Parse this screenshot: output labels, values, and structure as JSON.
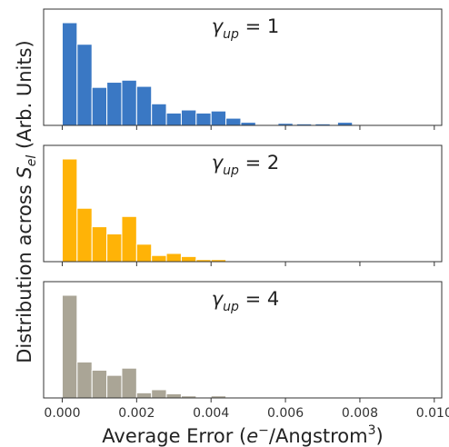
{
  "chart_data": {
    "type": "bar",
    "title": "",
    "xlabel": {
      "prefix": "Average Error (",
      "base": "e",
      "sup1": "−",
      "mid": "/Angstrom",
      "sup2": "3",
      "suffix": ")"
    },
    "ylabel": {
      "prefix": "Distribution across ",
      "symbol": "S",
      "sub": "el",
      "suffix": " (Arb. Units)"
    },
    "xlim": [
      -0.0005,
      0.0102
    ],
    "bin_width": 0.0004,
    "bin_start": 0.0,
    "x_ticks": [
      "0.000",
      "0.002",
      "0.004",
      "0.006",
      "0.008",
      "0.010"
    ],
    "x_tick_values": [
      0.0,
      0.002,
      0.004,
      0.006,
      0.008,
      0.01
    ],
    "grid": false,
    "panels": [
      {
        "label": {
          "gamma": "γ",
          "sub": "up",
          "rest": " = 1"
        },
        "color": "#3a78c4",
        "values": [
          1.0,
          0.79,
          0.37,
          0.42,
          0.44,
          0.38,
          0.21,
          0.12,
          0.15,
          0.12,
          0.14,
          0.07,
          0.03,
          0.0,
          0.0,
          0.0,
          0.0,
          0.0,
          0.0,
          0.0,
          0.0,
          0.0,
          0.0,
          0.0,
          0.0,
          0.0,
          0.0,
          0.0,
          0.0,
          0.0,
          0.0,
          0.0,
          0.0,
          0.0,
          0.0,
          0.0,
          0.0,
          0.0,
          0.0,
          0.0,
          0.0,
          0.0,
          0.0,
          0.0,
          0.0,
          0.0,
          0.0,
          0.0,
          0.0,
          0.0,
          0.0,
          0.0,
          0.0,
          0.0,
          0.0,
          0.0,
          0.0,
          0.0,
          0.0,
          0.0
        ],
        "outliers": [
          [
            0.0058,
            0.02
          ],
          [
            0.0063,
            0.015
          ],
          [
            0.0068,
            0.015
          ],
          [
            0.0074,
            0.03
          ]
        ]
      },
      {
        "label": {
          "gamma": "γ",
          "sub": "up",
          "rest": " = 2"
        },
        "color": "#ffb307",
        "values": [
          1.0,
          0.52,
          0.34,
          0.27,
          0.44,
          0.17,
          0.06,
          0.08,
          0.05,
          0.02,
          0.02
        ],
        "outliers": []
      },
      {
        "label": {
          "gamma": "γ",
          "sub": "up",
          "rest": " = 4"
        },
        "color": "#aaa596",
        "values": [
          1.0,
          0.35,
          0.27,
          0.22,
          0.29,
          0.05,
          0.08,
          0.04,
          0.02,
          0.0,
          0.02
        ],
        "outliers": []
      }
    ]
  }
}
